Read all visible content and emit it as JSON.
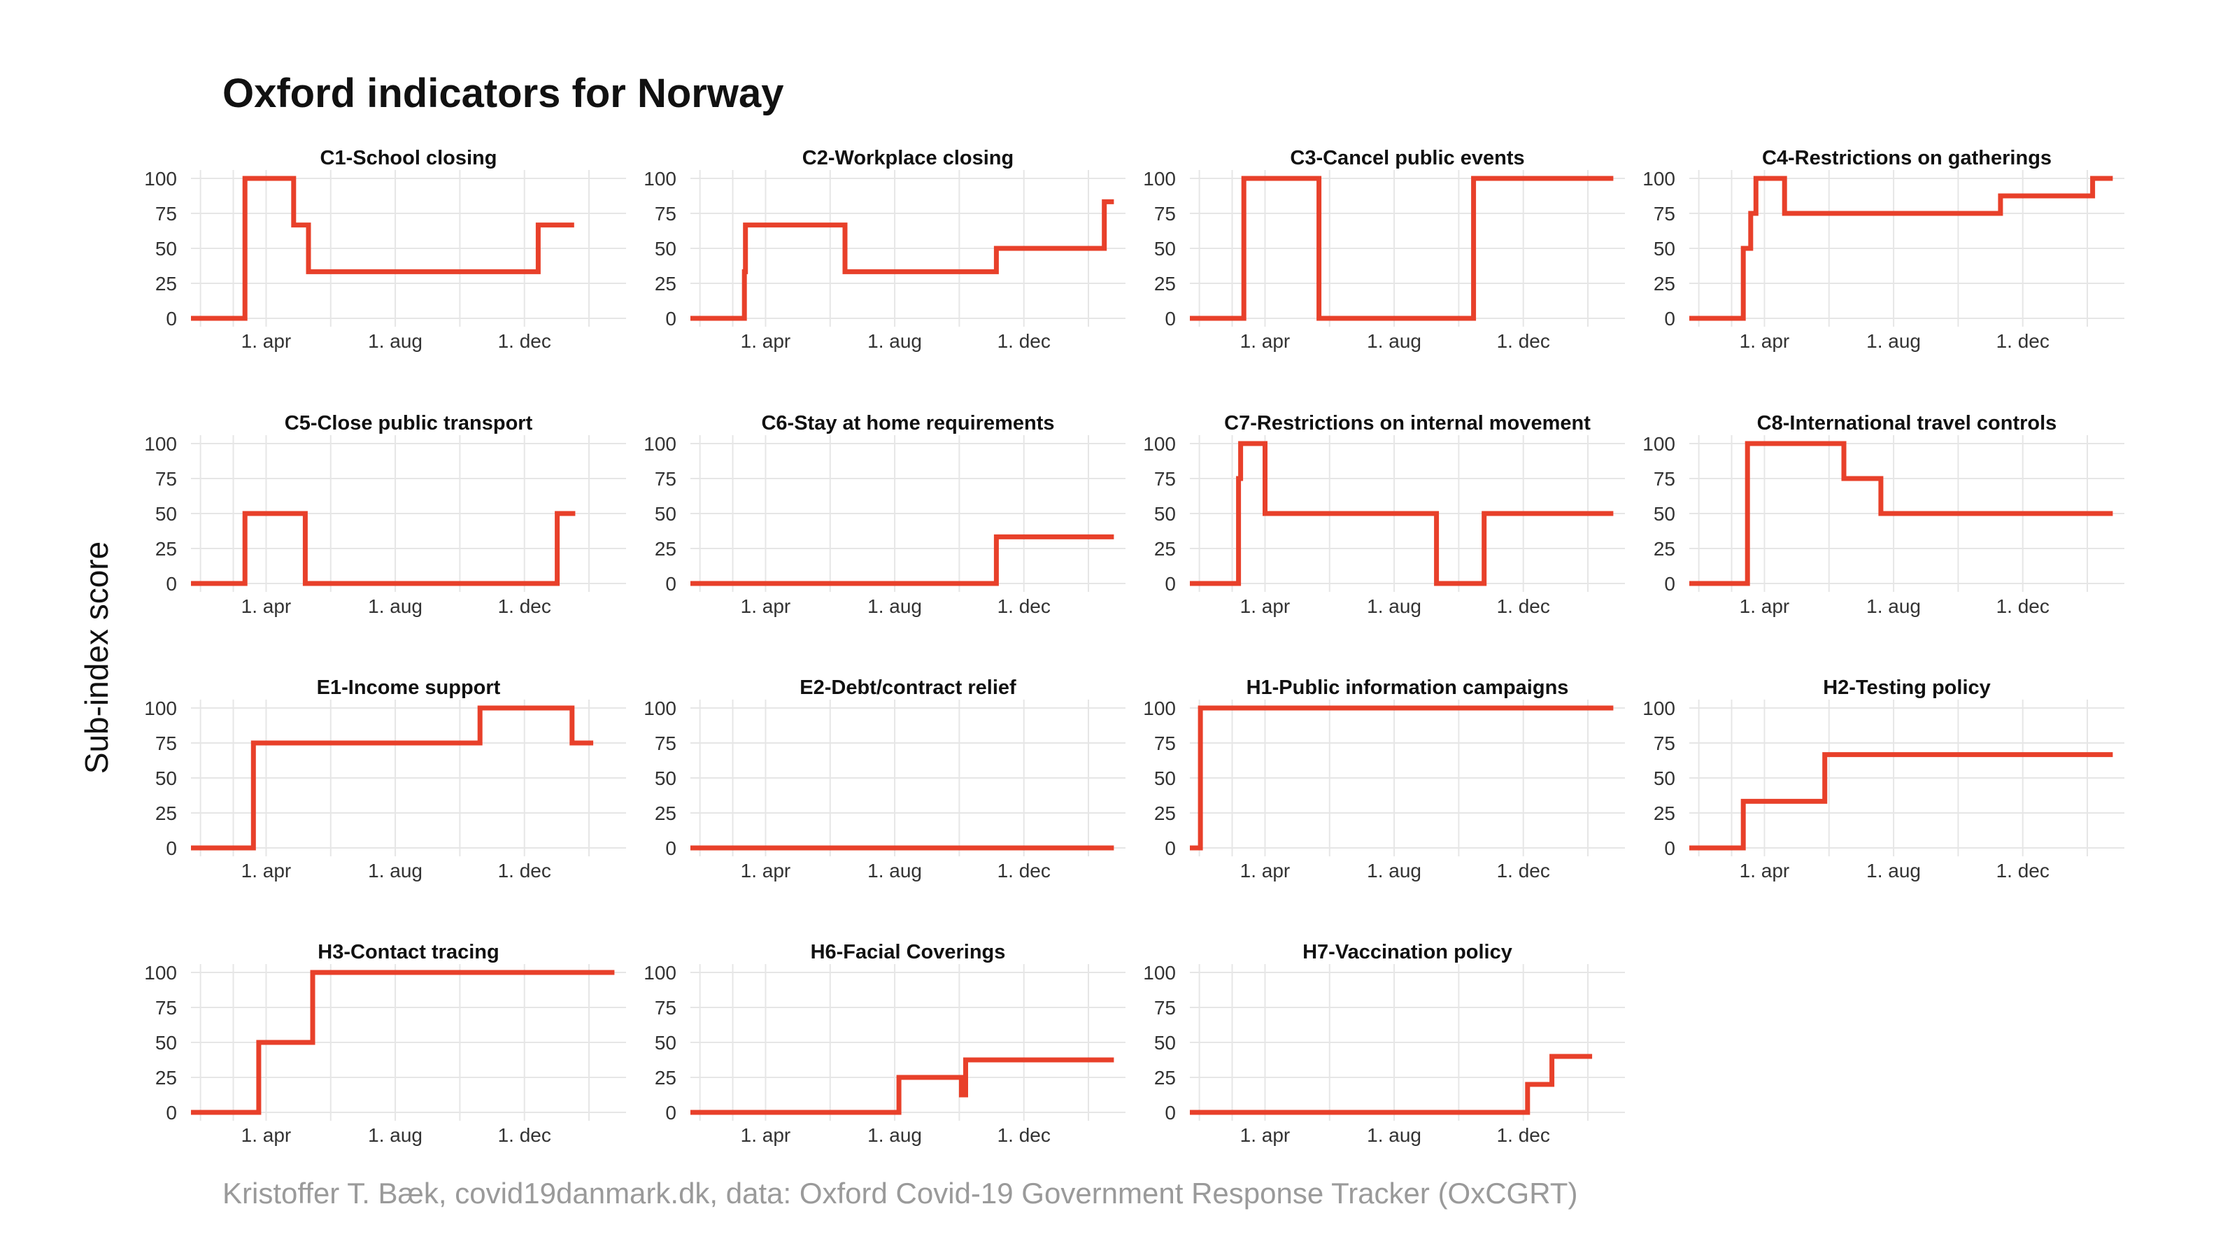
{
  "title": "Oxford indicators for Norway",
  "ylabel": "Sub-index score",
  "caption": "Kristoffer T. Bæk, covid19danmark.dk, data: Oxford Covid-19 Government Response Tracker (OxCGRT)",
  "colors": {
    "line": "#E8402A",
    "grid": "#e6e6e6",
    "text": "#111111",
    "tick": "#333333",
    "caption": "#9a9a9a"
  },
  "chart_data": {
    "type": "line",
    "layout": "facet-grid",
    "ylim": [
      0,
      100
    ],
    "yticks": [
      0,
      25,
      50,
      75,
      100
    ],
    "xlim": [
      "2020-01-21",
      "2021-03-07"
    ],
    "xticks": [
      {
        "date": "2020-04-01",
        "label": "1. apr"
      },
      {
        "date": "2020-08-01",
        "label": "1. aug"
      },
      {
        "date": "2020-12-01",
        "label": "1. dec"
      }
    ],
    "grid": true,
    "panels": [
      {
        "title": "C1-School closing",
        "x": [
          "2020-01-21",
          "2020-03-12",
          "2020-04-27",
          "2020-05-11",
          "2020-12-14",
          "2021-01-17"
        ],
        "y": [
          0,
          100,
          66.7,
          33.3,
          66.7,
          66.7
        ]
      },
      {
        "title": "C2-Workplace closing",
        "x": [
          "2020-01-21",
          "2020-03-12",
          "2020-03-13",
          "2020-06-15",
          "2020-11-05",
          "2021-02-15",
          "2021-02-24"
        ],
        "y": [
          0,
          33.3,
          66.7,
          33.3,
          50,
          83.3,
          83.3
        ]
      },
      {
        "title": "C3-Cancel public events",
        "x": [
          "2020-01-21",
          "2020-03-12",
          "2020-05-22",
          "2020-10-15",
          "2021-02-24"
        ],
        "y": [
          0,
          100,
          0,
          100,
          100
        ]
      },
      {
        "title": "C4-Restrictions on gatherings",
        "x": [
          "2020-01-21",
          "2020-03-12",
          "2020-03-19",
          "2020-03-24",
          "2020-04-20",
          "2020-11-10",
          "2021-01-25",
          "2021-02-05",
          "2021-02-24"
        ],
        "y": [
          0,
          50,
          75,
          100,
          75,
          87.5,
          87.5,
          100,
          100
        ]
      },
      {
        "title": "C5-Close public transport",
        "x": [
          "2020-01-21",
          "2020-03-12",
          "2020-05-08",
          "2021-01-01",
          "2021-01-18"
        ],
        "y": [
          0,
          50,
          0,
          50,
          50
        ]
      },
      {
        "title": "C6-Stay at home requirements",
        "x": [
          "2020-01-21",
          "2020-11-05",
          "2021-02-24"
        ],
        "y": [
          0,
          33.3,
          33.3
        ]
      },
      {
        "title": "C7-Restrictions on internal movement",
        "x": [
          "2020-01-21",
          "2020-03-07",
          "2020-03-09",
          "2020-04-01",
          "2020-09-10",
          "2020-10-25",
          "2021-02-24"
        ],
        "y": [
          0,
          75,
          100,
          50,
          0,
          50,
          50
        ]
      },
      {
        "title": "C8-International travel controls",
        "x": [
          "2020-01-21",
          "2020-03-16",
          "2020-06-15",
          "2020-07-20",
          "2021-02-24"
        ],
        "y": [
          0,
          100,
          75,
          50,
          50
        ]
      },
      {
        "title": "E1-Income support",
        "x": [
          "2020-01-21",
          "2020-03-20",
          "2020-10-20",
          "2021-01-15",
          "2021-02-04"
        ],
        "y": [
          0,
          75,
          100,
          75,
          75
        ]
      },
      {
        "title": "E2-Debt/contract relief",
        "x": [
          "2020-01-21",
          "2021-02-24"
        ],
        "y": [
          0,
          0
        ]
      },
      {
        "title": "H1-Public information campaigns",
        "x": [
          "2020-01-21",
          "2020-01-31",
          "2021-02-24"
        ],
        "y": [
          0,
          100,
          100
        ]
      },
      {
        "title": "H2-Testing policy",
        "x": [
          "2020-01-21",
          "2020-03-12",
          "2020-05-28",
          "2021-02-24"
        ],
        "y": [
          0,
          33.3,
          66.7,
          66.7
        ]
      },
      {
        "title": "H3-Contact tracing",
        "x": [
          "2020-01-21",
          "2020-03-25",
          "2020-05-15",
          "2021-02-24"
        ],
        "y": [
          0,
          50,
          100,
          100
        ]
      },
      {
        "title": "H6-Facial Coverings",
        "x": [
          "2020-01-21",
          "2020-08-05",
          "2020-10-03",
          "2020-10-07",
          "2021-02-24"
        ],
        "y": [
          0,
          25,
          12.5,
          37.5,
          37.5
        ]
      },
      {
        "title": "H7-Vaccination policy",
        "x": [
          "2020-01-21",
          "2020-12-05",
          "2020-12-28",
          "2021-01-05",
          "2021-02-04"
        ],
        "y": [
          0,
          20,
          40,
          40,
          40
        ]
      }
    ]
  }
}
